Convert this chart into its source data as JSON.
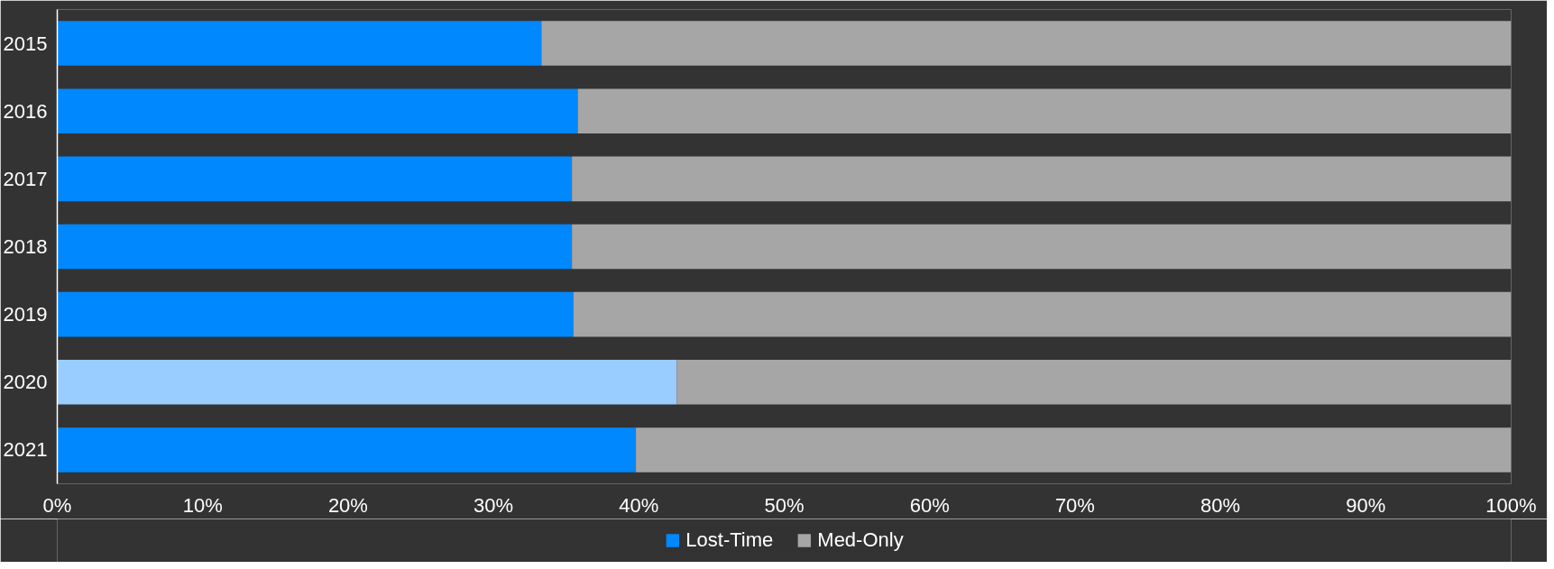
{
  "chart_data": {
    "type": "bar",
    "orientation": "horizontal",
    "stacked": true,
    "categories": [
      "2015",
      "2016",
      "2017",
      "2018",
      "2019",
      "2020",
      "2021"
    ],
    "series": [
      {
        "name": "Lost-Time",
        "color": "#0088ff",
        "colors": [
          "#0088ff",
          "#0088ff",
          "#0088ff",
          "#0088ff",
          "#0088ff",
          "#99ccff",
          "#0088ff"
        ],
        "values": [
          33.3,
          35.8,
          35.4,
          35.4,
          35.5,
          42.6,
          39.8
        ]
      },
      {
        "name": "Med-Only",
        "color": "#a6a6a6",
        "values": [
          66.7,
          64.2,
          64.6,
          64.6,
          64.5,
          57.4,
          60.2
        ]
      }
    ],
    "xlim": [
      0,
      100
    ],
    "xticks": [
      {
        "value": 0,
        "label": "0%"
      },
      {
        "value": 10,
        "label": "10%"
      },
      {
        "value": 20,
        "label": "20%"
      },
      {
        "value": 30,
        "label": "30%"
      },
      {
        "value": 40,
        "label": "40%"
      },
      {
        "value": 50,
        "label": "50%"
      },
      {
        "value": 60,
        "label": "60%"
      },
      {
        "value": 70,
        "label": "70%"
      },
      {
        "value": 80,
        "label": "80%"
      },
      {
        "value": 90,
        "label": "90%"
      },
      {
        "value": 100,
        "label": "100%"
      }
    ],
    "grid": false,
    "legend": "bottom"
  }
}
